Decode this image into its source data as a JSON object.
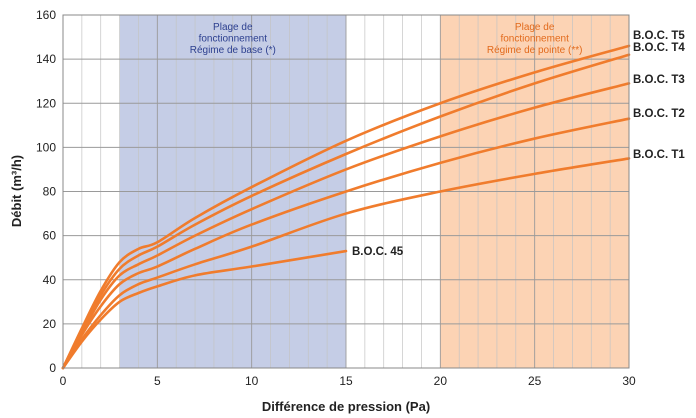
{
  "chart_data": {
    "type": "line",
    "xlabel": "Différence de pression (Pa)",
    "ylabel": "Débit (m³/h)",
    "xlim": [
      0,
      30
    ],
    "ylim": [
      0,
      160
    ],
    "xticks": [
      0,
      5,
      10,
      15,
      20,
      25,
      30
    ],
    "yticks": [
      0,
      20,
      40,
      60,
      80,
      100,
      120,
      140,
      160
    ],
    "grid": true,
    "colors": {
      "line": "#f07c2d",
      "zone_base_fill": "#c5cde6",
      "zone_base_text": "#2c3f8f",
      "zone_peak_fill": "#fcd3b4",
      "zone_peak_text": "#e26a1c"
    },
    "zones": [
      {
        "x_start": 3,
        "x_end": 15,
        "lines": [
          "Plage de",
          "fonctionnement",
          "Régime de base (*)"
        ],
        "style": "base"
      },
      {
        "x_start": 20,
        "x_end": 30,
        "lines": [
          "Plage de",
          "fonctionnement",
          "Régime de pointe (**)"
        ],
        "style": "peak"
      }
    ],
    "series": [
      {
        "name": "B.O.C. 45",
        "x": [
          0,
          1,
          2,
          3,
          4,
          5,
          7,
          10,
          15
        ],
        "y": [
          0,
          12,
          22,
          30,
          34,
          37,
          42,
          46,
          53
        ]
      },
      {
        "name": "B.O.C. T1",
        "x": [
          0,
          1,
          2,
          3,
          4,
          5,
          7,
          10,
          15,
          20,
          25,
          30
        ],
        "y": [
          0,
          13,
          24,
          33,
          38,
          41,
          47,
          55,
          70,
          80,
          88,
          95
        ]
      },
      {
        "name": "B.O.C. T2",
        "x": [
          0,
          1,
          2,
          3,
          4,
          5,
          7,
          10,
          15,
          20,
          25,
          30
        ],
        "y": [
          0,
          15,
          28,
          38,
          43,
          46,
          54,
          65,
          80,
          93,
          104,
          113
        ]
      },
      {
        "name": "B.O.C. T3",
        "x": [
          0,
          1,
          2,
          3,
          4,
          5,
          7,
          10,
          15,
          20,
          25,
          30
        ],
        "y": [
          0,
          16,
          31,
          42,
          47,
          51,
          60,
          72,
          90,
          105,
          118,
          129
        ]
      },
      {
        "name": "B.O.C. T4",
        "x": [
          0,
          1,
          2,
          3,
          4,
          5,
          7,
          10,
          15,
          20,
          25,
          30
        ],
        "y": [
          0,
          17,
          33,
          45,
          51,
          55,
          65,
          78,
          97,
          114,
          129,
          142
        ]
      },
      {
        "name": "B.O.C. T5",
        "x": [
          0,
          1,
          2,
          3,
          4,
          5,
          7,
          10,
          15,
          20,
          25,
          30
        ],
        "y": [
          0,
          18,
          35,
          48,
          54,
          57,
          68,
          82,
          103,
          120,
          134,
          146
        ]
      }
    ]
  }
}
